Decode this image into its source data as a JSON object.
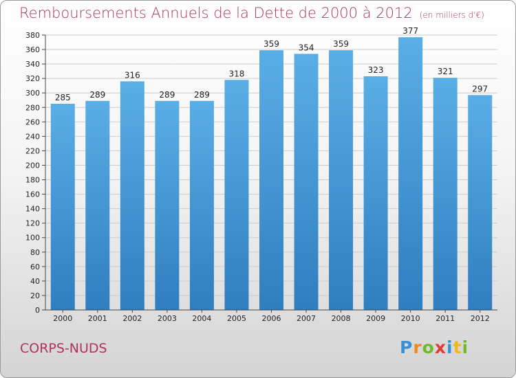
{
  "chart_data": {
    "type": "bar",
    "title": "Remboursements Annuels de la Dette de 2000 à 2012",
    "unit": "(en milliers d'€)",
    "categories": [
      "2000",
      "2001",
      "2002",
      "2003",
      "2004",
      "2005",
      "2006",
      "2007",
      "2008",
      "2009",
      "2010",
      "2011",
      "2012"
    ],
    "values": [
      285,
      289,
      316,
      289,
      289,
      318,
      359,
      354,
      359,
      323,
      377,
      321,
      297
    ],
    "data_labels": [
      "285",
      "289",
      "316",
      "289",
      "289",
      "318",
      "359",
      "354",
      "359",
      "323",
      "377",
      "321",
      "297"
    ],
    "ylim": [
      0,
      380
    ],
    "ytick_step": 20,
    "yticks": [
      "0",
      "20",
      "40",
      "60",
      "80",
      "100",
      "120",
      "140",
      "160",
      "180",
      "200",
      "220",
      "240",
      "260",
      "280",
      "300",
      "320",
      "340",
      "360",
      "380"
    ],
    "grid": true,
    "bar_color_top": "#5aaee6",
    "bar_color_bottom": "#2f7ec0"
  },
  "place_name": "CORPS-NUDS",
  "logo": {
    "letters": [
      "P",
      "r",
      "o",
      "x",
      "i",
      "t",
      "i"
    ],
    "colors": [
      "#3a8fd6",
      "#f08a1c",
      "#6fba2c",
      "#e23a3a",
      "#3a8fd6",
      "#f0b81c",
      "#6fba2c"
    ]
  },
  "colors": {
    "title": "#b0325e",
    "grid": "#cccccc"
  }
}
